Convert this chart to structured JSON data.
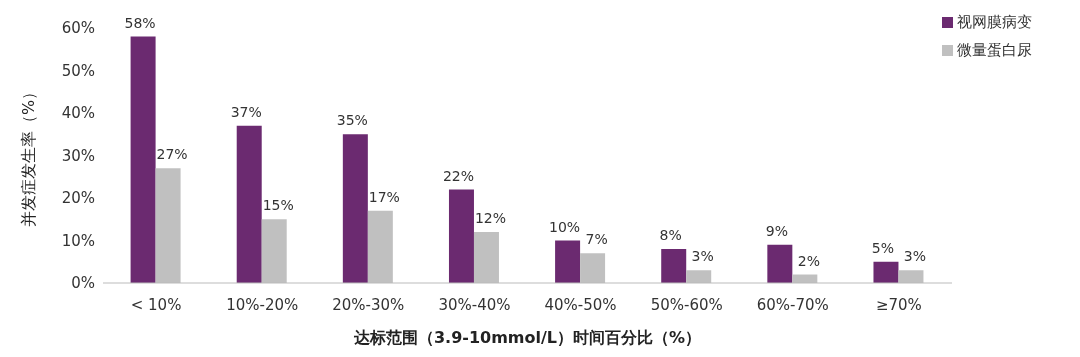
{
  "chart_data": {
    "type": "bar",
    "xlabel": "达标范围（3.9-10mmol/L）时间百分比（%）",
    "ylabel": "并发症发生率（%）",
    "categories": [
      "< 10%",
      "10%-20%",
      "20%-30%",
      "30%-40%",
      "40%-50%",
      "50%-60%",
      "60%-70%",
      "≥70%"
    ],
    "series": [
      {
        "name": "视网膜病变",
        "color": "#6b2a70",
        "values": [
          58,
          37,
          35,
          22,
          10,
          8,
          9,
          5
        ],
        "value_labels": [
          "58%",
          "37%",
          "35%",
          "22%",
          "10%",
          "8%",
          "9%",
          "5%"
        ]
      },
      {
        "name": "微量蛋白尿",
        "color": "#c0c0c0",
        "values": [
          27,
          15,
          17,
          12,
          7,
          3,
          2,
          3
        ],
        "value_labels": [
          "27%",
          "15%",
          "17%",
          "12%",
          "7%",
          "3%",
          "2%",
          "3%"
        ]
      }
    ],
    "ylim": [
      0,
      60
    ],
    "yticks": [
      {
        "value": 0,
        "label": "0%"
      },
      {
        "value": 10,
        "label": "10%"
      },
      {
        "value": 20,
        "label": "20%"
      },
      {
        "value": 30,
        "label": "30%"
      },
      {
        "value": 40,
        "label": "40%"
      },
      {
        "value": 50,
        "label": "50%"
      },
      {
        "value": 60,
        "label": "60%"
      }
    ],
    "grid": false,
    "legend": "top right"
  }
}
